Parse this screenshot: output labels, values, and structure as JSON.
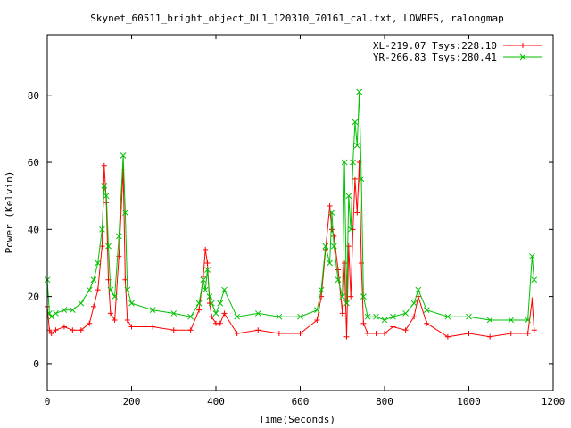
{
  "chart_data": {
    "type": "line",
    "title": "Skynet_60511_bright_object_DL1_120310_70161_cal.txt, LOWRES, ralongmap",
    "xlabel": "Time(Seconds)",
    "ylabel": "Power (Kelvin)",
    "xlim": [
      0,
      1200
    ],
    "ylim": [
      -8,
      98
    ],
    "x_ticks": [
      0,
      200,
      400,
      600,
      800,
      1000,
      1200
    ],
    "x_tick_labels": [
      "0",
      "200",
      "400",
      "600",
      "800",
      "1000",
      "1200"
    ],
    "y_ticks": [
      0,
      20,
      40,
      60,
      80
    ],
    "y_tick_labels": [
      "0",
      "20",
      "40",
      "60",
      "80"
    ],
    "grid": false,
    "legend_position": "top-right",
    "series": [
      {
        "name": "XL-219.07 Tsys:228.10",
        "color": "#ff0000",
        "marker": "plus",
        "x": [
          0,
          5,
          10,
          20,
          40,
          60,
          80,
          100,
          110,
          120,
          130,
          135,
          140,
          145,
          150,
          160,
          170,
          180,
          185,
          190,
          200,
          250,
          300,
          340,
          360,
          370,
          375,
          380,
          385,
          390,
          400,
          410,
          420,
          450,
          500,
          550,
          600,
          640,
          650,
          660,
          670,
          675,
          680,
          690,
          700,
          705,
          710,
          715,
          720,
          725,
          730,
          735,
          740,
          745,
          750,
          760,
          780,
          800,
          820,
          850,
          870,
          880,
          900,
          950,
          1000,
          1050,
          1100,
          1140,
          1150,
          1155
        ],
        "values": [
          17,
          10,
          9,
          10,
          11,
          10,
          10,
          12,
          17,
          22,
          35,
          59,
          48,
          25,
          15,
          13,
          32,
          58,
          25,
          13,
          11,
          11,
          10,
          10,
          16,
          26,
          34,
          30,
          18,
          14,
          12,
          12,
          15,
          9,
          10,
          9,
          9,
          13,
          20,
          34,
          47,
          40,
          38,
          28,
          15,
          30,
          8,
          35,
          20,
          40,
          55,
          45,
          60,
          30,
          12,
          9,
          9,
          9,
          11,
          10,
          14,
          20,
          12,
          8,
          9,
          8,
          9,
          9,
          19,
          10
        ]
      },
      {
        "name": "YR-266.83 Tsys:280.41",
        "color": "#00c000",
        "marker": "cross",
        "x": [
          0,
          5,
          10,
          20,
          40,
          60,
          80,
          100,
          110,
          120,
          130,
          135,
          140,
          145,
          150,
          160,
          170,
          180,
          185,
          190,
          200,
          250,
          300,
          340,
          360,
          370,
          375,
          380,
          385,
          390,
          400,
          410,
          420,
          450,
          500,
          550,
          600,
          640,
          650,
          660,
          670,
          675,
          680,
          690,
          700,
          705,
          710,
          715,
          720,
          725,
          730,
          735,
          740,
          745,
          750,
          760,
          780,
          800,
          820,
          850,
          870,
          880,
          900,
          950,
          1000,
          1050,
          1100,
          1140,
          1150,
          1155
        ],
        "values": [
          25,
          15,
          14,
          15,
          16,
          16,
          18,
          22,
          25,
          30,
          40,
          53,
          50,
          35,
          22,
          20,
          38,
          62,
          45,
          22,
          18,
          16,
          15,
          14,
          18,
          25,
          22,
          28,
          20,
          18,
          15,
          18,
          22,
          14,
          15,
          14,
          14,
          16,
          22,
          35,
          30,
          45,
          35,
          25,
          20,
          60,
          18,
          50,
          40,
          60,
          72,
          65,
          81,
          55,
          20,
          14,
          14,
          13,
          14,
          15,
          18,
          22,
          16,
          14,
          14,
          13,
          13,
          13,
          32,
          25
        ]
      }
    ]
  }
}
